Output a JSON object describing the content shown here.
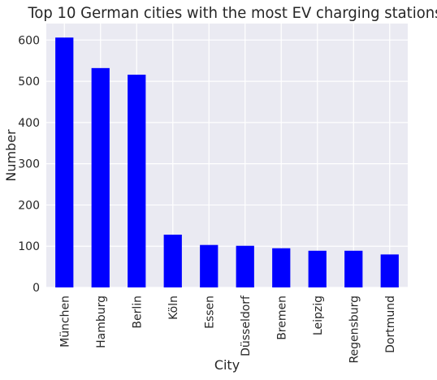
{
  "chart_data": {
    "type": "bar",
    "title": "Top 10 German cities with the most EV charging stations",
    "xlabel": "City",
    "ylabel": "Number",
    "categories": [
      "München",
      "Hamburg",
      "Berlin",
      "Köln",
      "Essen",
      "Düsseldorf",
      "Bremen",
      "Leipzig",
      "Regensburg",
      "Dortmund"
    ],
    "values": [
      606,
      532,
      516,
      128,
      103,
      101,
      95,
      89,
      89,
      80
    ],
    "ylim": [
      0,
      640
    ],
    "yticks": [
      0,
      100,
      200,
      300,
      400,
      500,
      600
    ],
    "grid": true,
    "legend": "none",
    "colors": {
      "bar": "#0000ff",
      "plot_background": "#eaeaf2",
      "grid": "#ffffff",
      "text": "#262626"
    }
  }
}
